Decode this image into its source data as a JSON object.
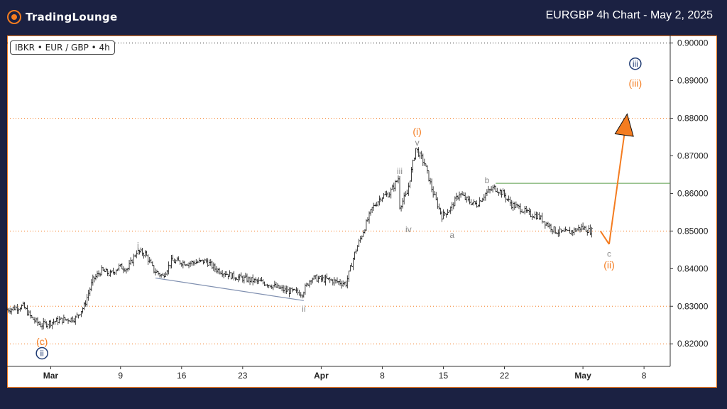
{
  "header": {
    "logo_text": "TradingLounge",
    "title": "EURGBP 4h Chart - May 2, 2025"
  },
  "badge": "IBKR • EUR / GBP • 4h",
  "colors": {
    "orange": "#f47c20",
    "navy": "#1f3b73",
    "gray": "#8a8a8a",
    "green": "#5b9e4a",
    "candle": "#111111",
    "trend": "#8090b0"
  },
  "chart_data": {
    "type": "candlestick",
    "symbol": "EURGBP",
    "timeframe": "4h",
    "y_range": [
      0.814,
      0.902
    ],
    "y_ticks": [
      {
        "value": 0.9,
        "label": "0.90000",
        "line": "dotted-dark"
      },
      {
        "value": 0.89,
        "label": "0.89000",
        "line": "none"
      },
      {
        "value": 0.88,
        "label": "0.88000",
        "line": "dotted-orange"
      },
      {
        "value": 0.87,
        "label": "0.87000",
        "line": "none"
      },
      {
        "value": 0.86,
        "label": "0.86000",
        "line": "none"
      },
      {
        "value": 0.85,
        "label": "0.85000",
        "line": "dotted-orange"
      },
      {
        "value": 0.84,
        "label": "0.84000",
        "line": "none"
      },
      {
        "value": 0.83,
        "label": "0.83000",
        "line": "dotted-orange"
      },
      {
        "value": 0.82,
        "label": "0.82000",
        "line": "dotted-orange"
      }
    ],
    "x_range": [
      "2025-02-24",
      "2025-05-11"
    ],
    "x_ticks": [
      {
        "date": "2025-03-01",
        "label": "Mar",
        "bold": true
      },
      {
        "date": "2025-03-09",
        "label": "9",
        "bold": false
      },
      {
        "date": "2025-03-16",
        "label": "16",
        "bold": false
      },
      {
        "date": "2025-03-23",
        "label": "23",
        "bold": false
      },
      {
        "date": "2025-04-01",
        "label": "Apr",
        "bold": true
      },
      {
        "date": "2025-04-08",
        "label": "8",
        "bold": false
      },
      {
        "date": "2025-04-15",
        "label": "15",
        "bold": false
      },
      {
        "date": "2025-04-22",
        "label": "22",
        "bold": false
      },
      {
        "date": "2025-05-01",
        "label": "May",
        "bold": true
      },
      {
        "date": "2025-05-08",
        "label": "8",
        "bold": false
      }
    ],
    "price_path": [
      [
        "2025-02-24",
        0.829
      ],
      [
        "2025-02-26",
        0.83
      ],
      [
        "2025-02-27",
        0.8268
      ],
      [
        "2025-02-28",
        0.825
      ],
      [
        "2025-03-02",
        0.8262
      ],
      [
        "2025-03-04",
        0.8268
      ],
      [
        "2025-03-05",
        0.83
      ],
      [
        "2025-03-06",
        0.837
      ],
      [
        "2025-03-07",
        0.8395
      ],
      [
        "2025-03-08",
        0.8385
      ],
      [
        "2025-03-09",
        0.8405
      ],
      [
        "2025-03-10",
        0.84
      ],
      [
        "2025-03-11",
        0.8445
      ],
      [
        "2025-03-12",
        0.844
      ],
      [
        "2025-03-13",
        0.8395
      ],
      [
        "2025-03-14",
        0.838
      ],
      [
        "2025-03-15",
        0.842
      ],
      [
        "2025-03-17",
        0.8415
      ],
      [
        "2025-03-19",
        0.842
      ],
      [
        "2025-03-20",
        0.84
      ],
      [
        "2025-03-22",
        0.838
      ],
      [
        "2025-03-24",
        0.837
      ],
      [
        "2025-03-26",
        0.836
      ],
      [
        "2025-03-28",
        0.8342
      ],
      [
        "2025-03-30",
        0.8335
      ],
      [
        "2025-03-31",
        0.8375
      ],
      [
        "2025-04-02",
        0.837
      ],
      [
        "2025-04-03",
        0.8365
      ],
      [
        "2025-04-04",
        0.836
      ],
      [
        "2025-04-05",
        0.844
      ],
      [
        "2025-04-06",
        0.85
      ],
      [
        "2025-04-07",
        0.856
      ],
      [
        "2025-04-08",
        0.859
      ],
      [
        "2025-04-09",
        0.86
      ],
      [
        "2025-04-10",
        0.864
      ],
      [
        "2025-04-10",
        0.856
      ],
      [
        "2025-04-11",
        0.86
      ],
      [
        "2025-04-12",
        0.872
      ],
      [
        "2025-04-13",
        0.868
      ],
      [
        "2025-04-14",
        0.86
      ],
      [
        "2025-04-15",
        0.854
      ],
      [
        "2025-04-16",
        0.856
      ],
      [
        "2025-04-17",
        0.86
      ],
      [
        "2025-04-18",
        0.858
      ],
      [
        "2025-04-19",
        0.857
      ],
      [
        "2025-04-20",
        0.86
      ],
      [
        "2025-04-21",
        0.8615
      ],
      [
        "2025-04-22",
        0.86
      ],
      [
        "2025-04-23",
        0.857
      ],
      [
        "2025-04-24",
        0.856
      ],
      [
        "2025-04-25",
        0.8545
      ],
      [
        "2025-04-26",
        0.854
      ],
      [
        "2025-04-27",
        0.852
      ],
      [
        "2025-04-28",
        0.85
      ],
      [
        "2025-04-29",
        0.8495
      ],
      [
        "2025-04-30",
        0.85
      ],
      [
        "2025-05-01",
        0.851
      ],
      [
        "2025-05-02",
        0.85
      ]
    ],
    "green_level": {
      "value": 0.8627,
      "from": "2025-04-21",
      "to": "2025-05-11"
    },
    "trend_line": {
      "from": [
        "2025-03-13",
        0.8375
      ],
      "to": [
        "2025-03-30",
        0.8315
      ]
    },
    "projection": [
      {
        "from": [
          "2025-05-03",
          0.85
        ],
        "to": [
          "2025-05-04",
          0.8465
        ]
      },
      {
        "from": [
          "2025-05-04",
          0.8465
        ],
        "to": [
          "2025-05-06",
          0.88
        ]
      }
    ],
    "annotations": [
      {
        "text": "(i)",
        "date": "2025-04-12",
        "value": 0.8765,
        "color": "orange",
        "size": 14
      },
      {
        "text": "v",
        "date": "2025-04-12",
        "value": 0.8735,
        "color": "gray",
        "size": 12
      },
      {
        "text": "iii",
        "date": "2025-04-10",
        "value": 0.866,
        "color": "gray",
        "size": 12
      },
      {
        "text": "iv",
        "date": "2025-04-11",
        "value": 0.8505,
        "color": "gray",
        "size": 12
      },
      {
        "text": "a",
        "date": "2025-04-16",
        "value": 0.849,
        "color": "gray",
        "size": 12
      },
      {
        "text": "b",
        "date": "2025-04-20",
        "value": 0.8635,
        "color": "gray",
        "size": 12
      },
      {
        "text": "c",
        "date": "2025-05-04",
        "value": 0.844,
        "color": "gray",
        "size": 12
      },
      {
        "text": "(ii)",
        "date": "2025-05-04",
        "value": 0.841,
        "color": "orange",
        "size": 14
      },
      {
        "text": "(iii)",
        "date": "2025-05-07",
        "value": 0.8893,
        "color": "orange",
        "size": 14
      },
      {
        "text": "iii",
        "date": "2025-05-07",
        "value": 0.8945,
        "color": "navy",
        "size": 12,
        "circled": true
      },
      {
        "text": "i",
        "date": "2025-03-11",
        "value": 0.8462,
        "color": "gray",
        "size": 12
      },
      {
        "text": "ii",
        "date": "2025-03-30",
        "value": 0.8293,
        "color": "gray",
        "size": 12
      },
      {
        "text": "(c)",
        "date": "2025-02-28",
        "value": 0.8206,
        "color": "orange",
        "size": 14
      },
      {
        "text": "ii",
        "date": "2025-02-28",
        "value": 0.8175,
        "color": "navy",
        "size": 12,
        "circled": true
      }
    ]
  }
}
